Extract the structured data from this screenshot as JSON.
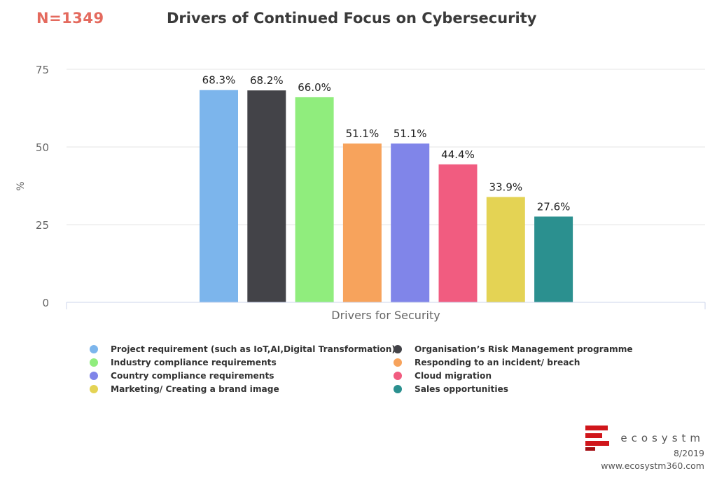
{
  "header": {
    "sample_size": "N=1349",
    "title": "Drivers of Continued Focus on Cybersecurity"
  },
  "chart_data": {
    "type": "bar",
    "title": "Drivers of Continued Focus on Cybersecurity",
    "xlabel": "Drivers for Security",
    "ylabel": "%",
    "ylim": [
      0,
      75
    ],
    "yticks": [
      "0",
      "25",
      "50",
      "75"
    ],
    "grid": true,
    "legend_position": "bottom",
    "series": [
      {
        "name": "Project requirement (such as IoT,AI,Digital Transformation)",
        "value": 68.3,
        "label": "68.3%",
        "color": "#7cb5ec"
      },
      {
        "name": "Organisation’s Risk Management programme",
        "value": 68.2,
        "label": "68.2%",
        "color": "#434348"
      },
      {
        "name": "Industry compliance requirements",
        "value": 66.0,
        "label": "66.0%",
        "color": "#90ed7d"
      },
      {
        "name": "Responding to an incident/ breach",
        "value": 51.1,
        "label": "51.1%",
        "color": "#f7a35c"
      },
      {
        "name": "Country compliance requirements",
        "value": 51.1,
        "label": "51.1%",
        "color": "#8085e9"
      },
      {
        "name": "Cloud migration",
        "value": 44.4,
        "label": "44.4%",
        "color": "#f15c80"
      },
      {
        "name": "Marketing/ Creating a brand image",
        "value": 33.9,
        "label": "33.9%",
        "color": "#e4d354"
      },
      {
        "name": "Sales opportunities",
        "value": 27.6,
        "label": "27.6%",
        "color": "#2b908f"
      }
    ]
  },
  "legend": {
    "items": [
      {
        "label": "Project requirement (such as IoT,AI,Digital Transformation)",
        "color": "#7cb5ec"
      },
      {
        "label": "Organisation’s Risk Management programme",
        "color": "#434348"
      },
      {
        "label": "Industry compliance requirements",
        "color": "#90ed7d"
      },
      {
        "label": "Responding to an incident/ breach",
        "color": "#f7a35c"
      },
      {
        "label": "Country compliance requirements",
        "color": "#8085e9"
      },
      {
        "label": "Cloud migration",
        "color": "#f15c80"
      },
      {
        "label": "Marketing/ Creating a brand image",
        "color": "#e4d354"
      },
      {
        "label": "Sales opportunities",
        "color": "#2b908f"
      }
    ]
  },
  "branding": {
    "name": "ecosystm",
    "date": "8/2019",
    "url": "www.ecosystm360.com",
    "logo_color": "#d0161b"
  }
}
